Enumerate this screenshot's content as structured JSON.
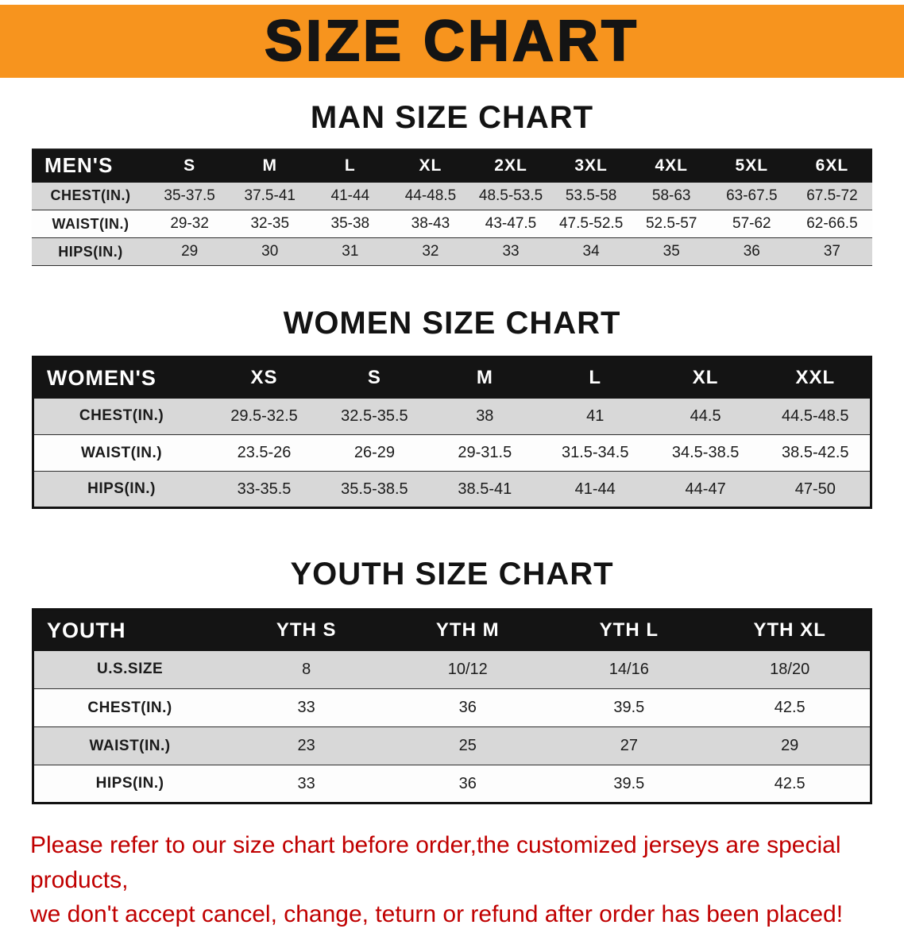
{
  "banner": {
    "title": "SIZE CHART"
  },
  "colors": {
    "banner_bg": "#F7941E",
    "table_header_bg": "#141414",
    "stripe": "#D8D8D8",
    "footer_text": "#C00000"
  },
  "sections": [
    {
      "heading": "MAN SIZE CHART",
      "table": {
        "header": [
          "MEN'S",
          "S",
          "M",
          "L",
          "XL",
          "2XL",
          "3XL",
          "4XL",
          "5XL",
          "6XL"
        ],
        "rows": [
          {
            "label": "CHEST(IN.)",
            "values": [
              "35-37.5",
              "37.5-41",
              "41-44",
              "44-48.5",
              "48.5-53.5",
              "53.5-58",
              "58-63",
              "63-67.5",
              "67.5-72"
            ]
          },
          {
            "label": "WAIST(IN.)",
            "values": [
              "29-32",
              "32-35",
              "35-38",
              "38-43",
              "43-47.5",
              "47.5-52.5",
              "52.5-57",
              "57-62",
              "62-66.5"
            ]
          },
          {
            "label": "HIPS(IN.)",
            "values": [
              "29",
              "30",
              "31",
              "32",
              "33",
              "34",
              "35",
              "36",
              "37"
            ]
          }
        ]
      }
    },
    {
      "heading": "WOMEN SIZE CHART",
      "table": {
        "header": [
          "WOMEN'S",
          "XS",
          "S",
          "M",
          "L",
          "XL",
          "XXL"
        ],
        "rows": [
          {
            "label": "CHEST(IN.)",
            "values": [
              "29.5-32.5",
              "32.5-35.5",
              "38",
              "41",
              "44.5",
              "44.5-48.5"
            ]
          },
          {
            "label": "WAIST(IN.)",
            "values": [
              "23.5-26",
              "26-29",
              "29-31.5",
              "31.5-34.5",
              "34.5-38.5",
              "38.5-42.5"
            ]
          },
          {
            "label": "HIPS(IN.)",
            "values": [
              "33-35.5",
              "35.5-38.5",
              "38.5-41",
              "41-44",
              "44-47",
              "47-50"
            ]
          }
        ]
      }
    },
    {
      "heading": "YOUTH SIZE CHART",
      "table": {
        "header": [
          "YOUTH",
          "YTH S",
          "YTH M",
          "YTH L",
          "YTH XL"
        ],
        "rows": [
          {
            "label": "U.S.SIZE",
            "values": [
              "8",
              "10/12",
              "14/16",
              "18/20"
            ]
          },
          {
            "label": "CHEST(IN.)",
            "values": [
              "33",
              "36",
              "39.5",
              "42.5"
            ]
          },
          {
            "label": "WAIST(IN.)",
            "values": [
              "23",
              "25",
              "27",
              "29"
            ]
          },
          {
            "label": "HIPS(IN.)",
            "values": [
              "33",
              "36",
              "39.5",
              "42.5"
            ]
          }
        ]
      }
    }
  ],
  "footer": {
    "line1": "Please refer to our size chart before order,the customized jerseys are special products,",
    "line2": "we don't accept cancel, change, teturn or refund after order has been placed!"
  }
}
